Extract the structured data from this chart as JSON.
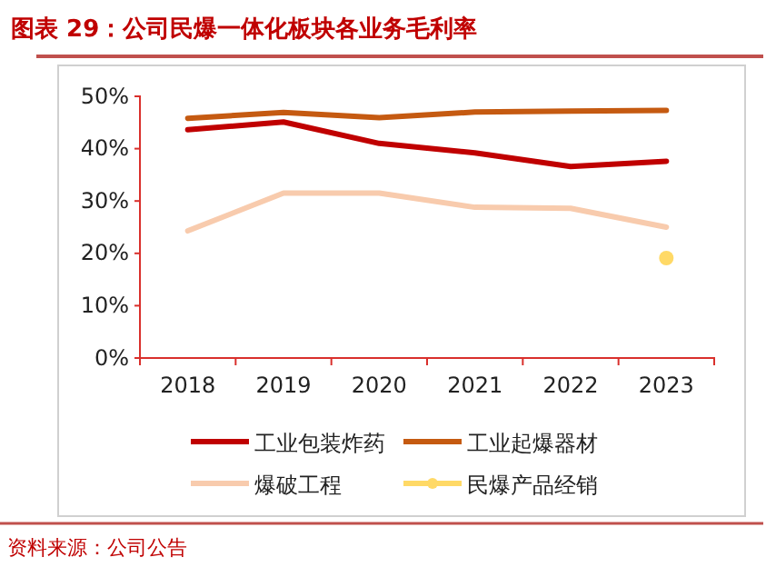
{
  "chart_data": {
    "type": "line",
    "title": "图表 29：公司民爆一体化板块各业务毛利率",
    "categories": [
      "2018",
      "2019",
      "2020",
      "2021",
      "2022",
      "2023"
    ],
    "series": [
      {
        "name": "工业包装炸药",
        "color": "#c00000",
        "values": [
          43.6,
          45.1,
          41.0,
          39.2,
          36.6,
          37.6
        ]
      },
      {
        "name": "工业起爆器材",
        "color": "#c55a11",
        "values": [
          45.8,
          46.9,
          45.9,
          47.0,
          47.2,
          47.3
        ]
      },
      {
        "name": "爆破工程",
        "color": "#f8cbad",
        "values": [
          24.3,
          31.5,
          31.5,
          28.8,
          28.6,
          25.0
        ]
      },
      {
        "name": "民爆产品经销",
        "color": "#ffd966",
        "marker": "circle",
        "values": [
          null,
          null,
          null,
          null,
          null,
          19.1
        ]
      }
    ],
    "ylim": [
      0,
      50
    ],
    "yticks": [
      {
        "value": 0,
        "label": "0%"
      },
      {
        "value": 10,
        "label": "10%"
      },
      {
        "value": 20,
        "label": "20%"
      },
      {
        "value": 30,
        "label": "30%"
      },
      {
        "value": 40,
        "label": "40%"
      },
      {
        "value": 50,
        "label": "50%"
      }
    ],
    "grid": false,
    "legend": "bottom",
    "annotations": [
      "资料来源：公司公告"
    ]
  }
}
